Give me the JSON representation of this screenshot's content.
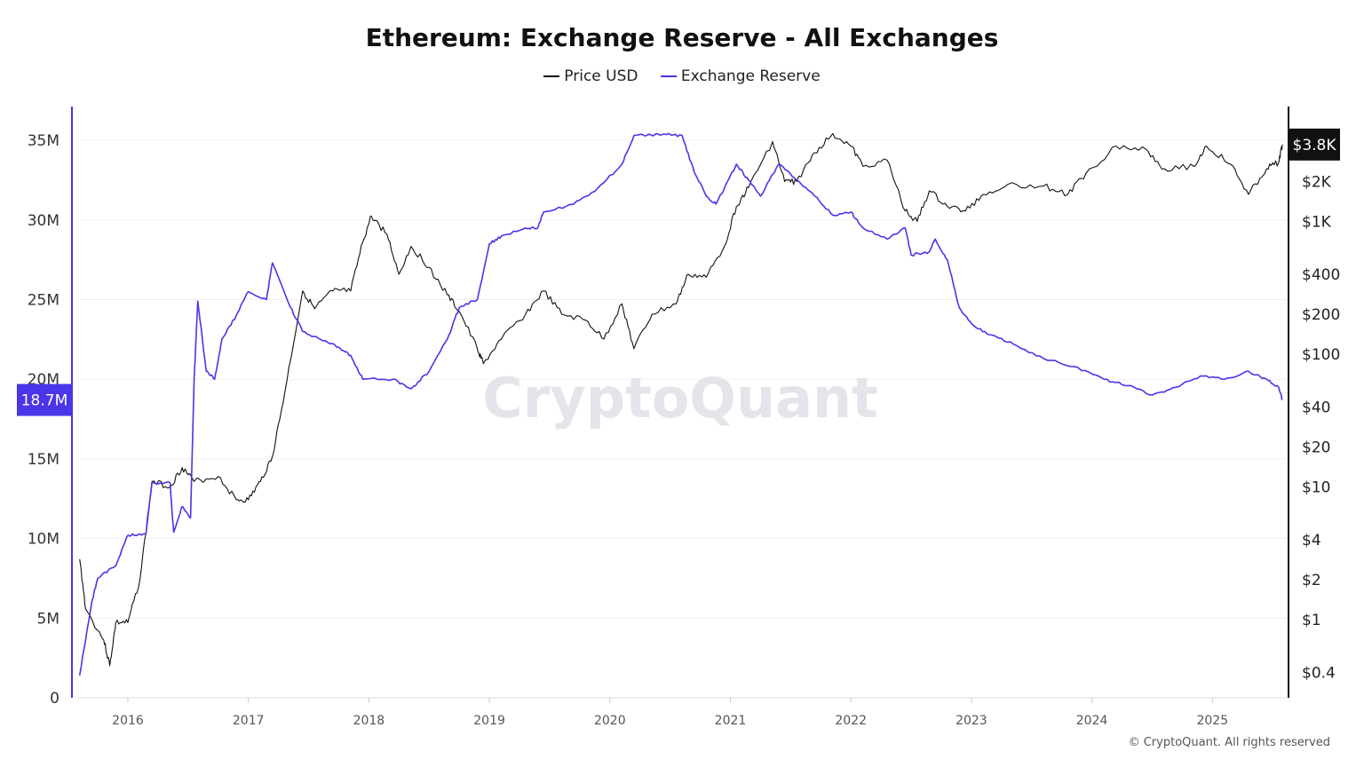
{
  "chart_data": {
    "type": "line",
    "title": "Ethereum: Exchange Reserve - All Exchanges",
    "watermark": "CryptoQuant",
    "footer": "© CryptoQuant. All rights reserved",
    "legend_position": "top",
    "grid": true,
    "x_ticks": [
      "2016",
      "2017",
      "2018",
      "2019",
      "2020",
      "2021",
      "2022",
      "2023",
      "2024",
      "2025"
    ],
    "left_axis": {
      "ticks": [
        "0",
        "5M",
        "10M",
        "15M",
        "20M",
        "25M",
        "30M",
        "35M"
      ],
      "tick_values": [
        0,
        5,
        10,
        15,
        20,
        25,
        30,
        35
      ],
      "unit": "M",
      "range": [
        0,
        35
      ],
      "latest_label": "18.7M"
    },
    "right_axis": {
      "scale": "log",
      "ticks": [
        "$0.4",
        "$1",
        "$2",
        "$4",
        "$10",
        "$20",
        "$40",
        "$100",
        "$200",
        "$400",
        "$1K",
        "$2K"
      ],
      "tick_values": [
        0.4,
        1,
        2,
        4,
        10,
        20,
        40,
        100,
        200,
        400,
        1000,
        2000
      ],
      "latest_label": "$3.8K"
    },
    "series": [
      {
        "name": "Price USD",
        "axis": "right",
        "color": "#111111",
        "x": [
          2015.6,
          2015.65,
          2015.8,
          2015.85,
          2015.9,
          2016.0,
          2016.1,
          2016.2,
          2016.35,
          2016.45,
          2016.55,
          2016.75,
          2016.9,
          2017.0,
          2017.1,
          2017.2,
          2017.3,
          2017.45,
          2017.55,
          2017.7,
          2017.85,
          2017.95,
          2018.02,
          2018.15,
          2018.25,
          2018.35,
          2018.5,
          2018.65,
          2018.75,
          2018.9,
          2018.95,
          2019.1,
          2019.3,
          2019.45,
          2019.6,
          2019.8,
          2019.95,
          2020.1,
          2020.2,
          2020.35,
          2020.55,
          2020.65,
          2020.8,
          2020.95,
          2021.05,
          2021.15,
          2021.35,
          2021.45,
          2021.55,
          2021.7,
          2021.85,
          2022.0,
          2022.1,
          2022.3,
          2022.45,
          2022.55,
          2022.65,
          2022.8,
          2022.95,
          2023.1,
          2023.3,
          2023.6,
          2023.8,
          2023.95,
          2024.2,
          2024.45,
          2024.6,
          2024.85,
          2024.95,
          2025.15,
          2025.3,
          2025.45,
          2025.55,
          2025.58
        ],
        "values": [
          2.85,
          1.2,
          0.7,
          0.45,
          0.95,
          0.95,
          2.0,
          11,
          10,
          14,
          11,
          12,
          8,
          8,
          11,
          17,
          50,
          300,
          220,
          300,
          300,
          700,
          1100,
          800,
          400,
          650,
          450,
          280,
          210,
          110,
          85,
          130,
          200,
          300,
          200,
          180,
          130,
          240,
          110,
          200,
          240,
          400,
          380,
          650,
          1300,
          1800,
          4000,
          2000,
          2000,
          3300,
          4600,
          3700,
          2600,
          2900,
          1200,
          1000,
          1700,
          1300,
          1200,
          1600,
          1900,
          1850,
          1600,
          2300,
          3700,
          3500,
          2500,
          2600,
          3700,
          2700,
          1600,
          2500,
          2800,
          3800
        ]
      },
      {
        "name": "Exchange Reserve",
        "axis": "left",
        "color": "#4a35e8",
        "x": [
          2015.6,
          2015.7,
          2015.75,
          2015.9,
          2016.0,
          2016.15,
          2016.2,
          2016.35,
          2016.38,
          2016.45,
          2016.52,
          2016.55,
          2016.58,
          2016.65,
          2016.72,
          2016.78,
          2016.9,
          2017.0,
          2017.15,
          2017.2,
          2017.35,
          2017.45,
          2017.6,
          2017.75,
          2017.85,
          2017.95,
          2018.2,
          2018.35,
          2018.5,
          2018.65,
          2018.75,
          2018.9,
          2019.0,
          2019.1,
          2019.3,
          2019.4,
          2019.45,
          2019.7,
          2019.9,
          2020.1,
          2020.2,
          2020.45,
          2020.6,
          2020.7,
          2020.8,
          2020.88,
          2020.95,
          2021.05,
          2021.15,
          2021.25,
          2021.4,
          2021.55,
          2021.7,
          2021.85,
          2022.0,
          2022.1,
          2022.3,
          2022.45,
          2022.5,
          2022.65,
          2022.7,
          2022.8,
          2022.9,
          2023.0,
          2023.15,
          2023.35,
          2023.6,
          2023.85,
          2024.1,
          2024.3,
          2024.5,
          2024.7,
          2024.9,
          2025.1,
          2025.3,
          2025.45,
          2025.55,
          2025.58
        ],
        "values": [
          1.4,
          6.0,
          7.5,
          8.3,
          10.2,
          10.3,
          13.5,
          13.5,
          10.4,
          12,
          11.3,
          20,
          24.9,
          20.5,
          20.0,
          22.5,
          24,
          25.5,
          25,
          27.3,
          24.5,
          23,
          22.5,
          22,
          21.5,
          20,
          20,
          19.4,
          20.5,
          22.5,
          24.5,
          25,
          28.5,
          29,
          29.5,
          29.5,
          30.5,
          31,
          32,
          33.5,
          35.3,
          35.4,
          35.3,
          33,
          31.5,
          31,
          32,
          33.5,
          32.5,
          31.5,
          33.5,
          32.5,
          31.5,
          30.3,
          30.5,
          29.5,
          28.8,
          29.5,
          27.8,
          28,
          28.8,
          27.5,
          24.5,
          23.5,
          22.8,
          22.2,
          21.3,
          20.8,
          20.0,
          19.6,
          19.0,
          19.5,
          20.2,
          20.0,
          20.5,
          20.0,
          19.5,
          18.7
        ]
      }
    ]
  }
}
